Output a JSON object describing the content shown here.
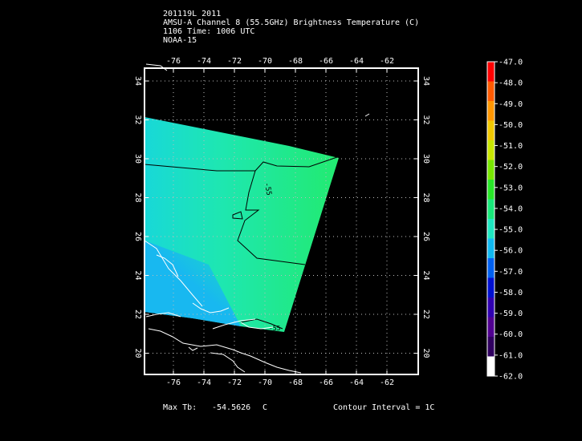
{
  "header": {
    "line1": "201119L 2011",
    "line2": "AMSU-A Channel 8 (55.5GHz) Brightness Temperature (C)",
    "line3": "1106 Time: 1006 UTC",
    "line4": "NOAA-15"
  },
  "map": {
    "lon_ticks": [
      "-76",
      "-74",
      "-72",
      "-70",
      "-68",
      "-66",
      "-64",
      "-62"
    ],
    "lat_ticks": [
      "34",
      "32",
      "30",
      "28",
      "26",
      "24",
      "22",
      "20"
    ],
    "contour_label": "-55",
    "contour_label_lower": "-55",
    "swath_colors": {
      "fill_main": "#1ee7b0",
      "fill_east": "#20ea80",
      "fill_southwest": "#18c8e8"
    }
  },
  "colorbar": {
    "labels": [
      "-47.0",
      "-48.0",
      "-49.0",
      "-50.0",
      "-51.0",
      "-52.0",
      "-53.0",
      "-54.0",
      "-55.0",
      "-56.0",
      "-57.0",
      "-58.0",
      "-59.0",
      "-60.0",
      "-61.0",
      "-62.0"
    ],
    "colors_top_to_bottom": [
      "#ff0000",
      "#ff5a00",
      "#ff9600",
      "#f0c800",
      "#c8e600",
      "#78e600",
      "#28e628",
      "#18e87a",
      "#1ee7c0",
      "#10b8f0",
      "#0060f0",
      "#0010d0",
      "#3000b0",
      "#500090",
      "#300060",
      "#ffffff"
    ]
  },
  "footer": {
    "max_label": "Max Tb:",
    "max_value": "-54.5626",
    "max_unit": "C",
    "contour_interval": "Contour Interval = 1C"
  }
}
